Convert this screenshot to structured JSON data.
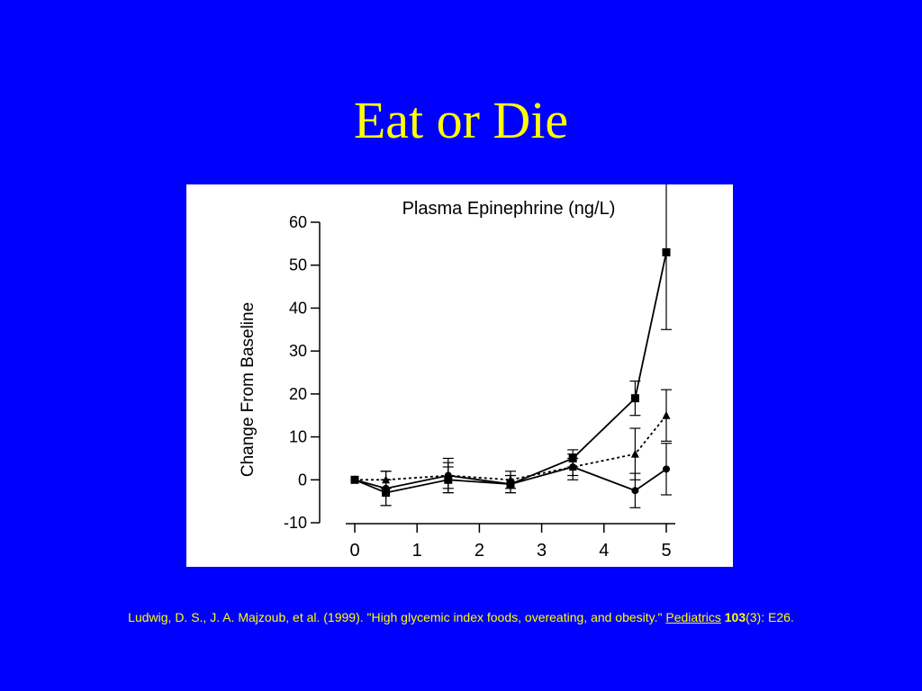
{
  "slide": {
    "title": "Eat or Die",
    "colors": {
      "background": "#0000ff",
      "title": "#ffff00",
      "citation": "#ffff00",
      "figure_bg": "#ffffff"
    }
  },
  "citation": {
    "authors_title": "Ludwig, D. S., J. A. Majzoub, et al. (1999). \"High glycemic index foods, overeating, and obesity.\"",
    "journal": "Pediatrics",
    "volume": "103",
    "issue": "(3):",
    "pages": "E26",
    "end": "."
  },
  "chart_data": {
    "type": "line",
    "title": "Plasma Epinephrine (ng/L)",
    "xlabel": "",
    "ylabel": "Change From Baseline",
    "xlim": [
      0,
      5
    ],
    "ylim": [
      -10,
      60
    ],
    "x_ticks": [
      0,
      1,
      2,
      3,
      4,
      5
    ],
    "y_ticks": [
      -10,
      0,
      10,
      20,
      30,
      40,
      50,
      60
    ],
    "grid": false,
    "series": [
      {
        "marker": "square",
        "line_style": "solid",
        "x": [
          0,
          0.5,
          1.5,
          2.5,
          3.5,
          4.5,
          5
        ],
        "y": [
          0,
          -3,
          0,
          -1,
          5,
          19,
          53
        ],
        "err": [
          0,
          3,
          3,
          2,
          2,
          4,
          18
        ]
      },
      {
        "marker": "triangle",
        "line_style": "dotted",
        "x": [
          0,
          0.5,
          1.5,
          2.5,
          3.5,
          4.5,
          5
        ],
        "y": [
          0,
          0,
          1,
          0,
          3,
          6,
          15
        ],
        "err": [
          0,
          2,
          4,
          2,
          2,
          6,
          6
        ]
      },
      {
        "marker": "circle",
        "line_style": "solid",
        "x": [
          0,
          0.5,
          1.5,
          2.5,
          3.5,
          4.5,
          5
        ],
        "y": [
          0,
          -2,
          1,
          -1,
          3,
          -2.5,
          2.5
        ],
        "err": [
          0,
          4,
          3,
          2,
          3,
          4,
          6
        ]
      }
    ]
  }
}
